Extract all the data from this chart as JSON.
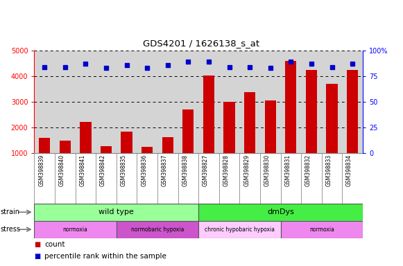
{
  "title": "GDS4201 / 1626138_s_at",
  "samples": [
    "GSM398839",
    "GSM398840",
    "GSM398841",
    "GSM398842",
    "GSM398835",
    "GSM398836",
    "GSM398837",
    "GSM398838",
    "GSM398827",
    "GSM398828",
    "GSM398829",
    "GSM398830",
    "GSM398831",
    "GSM398832",
    "GSM398833",
    "GSM398834"
  ],
  "counts": [
    1580,
    1480,
    2200,
    1260,
    1830,
    1240,
    1630,
    2700,
    4020,
    3010,
    3380,
    3060,
    4600,
    4230,
    3700,
    4230
  ],
  "percentile_ranks": [
    84,
    84,
    87,
    83,
    86,
    83,
    86,
    89,
    89,
    84,
    84,
    83,
    89,
    87,
    84,
    87
  ],
  "bar_color": "#cc0000",
  "dot_color": "#0000cc",
  "ylim_left": [
    1000,
    5000
  ],
  "ylim_right": [
    0,
    100
  ],
  "yticks_left": [
    1000,
    2000,
    3000,
    4000,
    5000
  ],
  "yticks_right": [
    0,
    25,
    50,
    75,
    100
  ],
  "strain_groups": [
    {
      "label": "wild type",
      "start": 0,
      "end": 8,
      "color": "#99ff99"
    },
    {
      "label": "dmDys",
      "start": 8,
      "end": 16,
      "color": "#44ee44"
    }
  ],
  "stress_groups": [
    {
      "label": "normoxia",
      "start": 0,
      "end": 4,
      "color": "#ee88ee"
    },
    {
      "label": "normobaric hypoxia",
      "start": 4,
      "end": 8,
      "color": "#cc55cc"
    },
    {
      "label": "chronic hypobaric hypoxia",
      "start": 8,
      "end": 12,
      "color": "#ffccff"
    },
    {
      "label": "normoxia",
      "start": 12,
      "end": 16,
      "color": "#ee88ee"
    }
  ],
  "strain_label": "strain",
  "stress_label": "stress",
  "legend_count": "count",
  "legend_percentile": "percentile rank within the sample",
  "plot_bg": "#d4d4d4",
  "label_bg": "#d4d4d4",
  "fig_width": 5.81,
  "fig_height": 3.84
}
